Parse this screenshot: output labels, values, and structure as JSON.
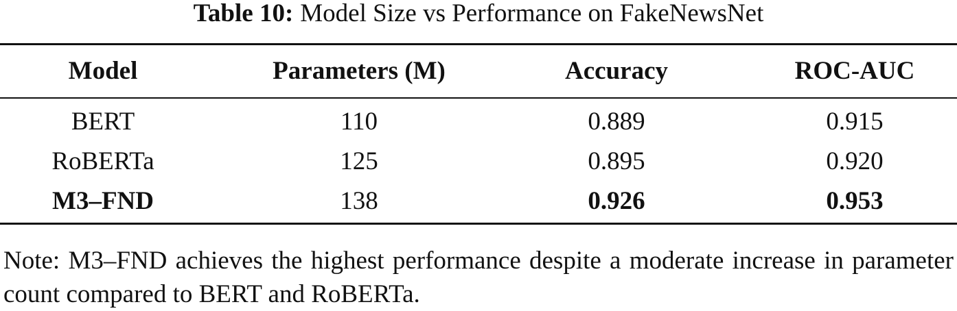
{
  "caption": {
    "label": "Table 10:",
    "text": "Model Size vs Performance on FakeNewsNet"
  },
  "table": {
    "header": [
      "Model",
      "Parameters (M)",
      "Accuracy",
      "ROC-AUC"
    ],
    "rows": [
      [
        "BERT",
        "110",
        "0.889",
        "0.915"
      ],
      [
        "RoBERTa",
        "125",
        "0.895",
        "0.920"
      ],
      [
        "M3–FND",
        "138",
        "0.926",
        "0.953"
      ]
    ]
  },
  "note": "Note: M3–FND achieves the highest performance despite a moderate increase in parameter count compared to BERT and RoBERTa."
}
